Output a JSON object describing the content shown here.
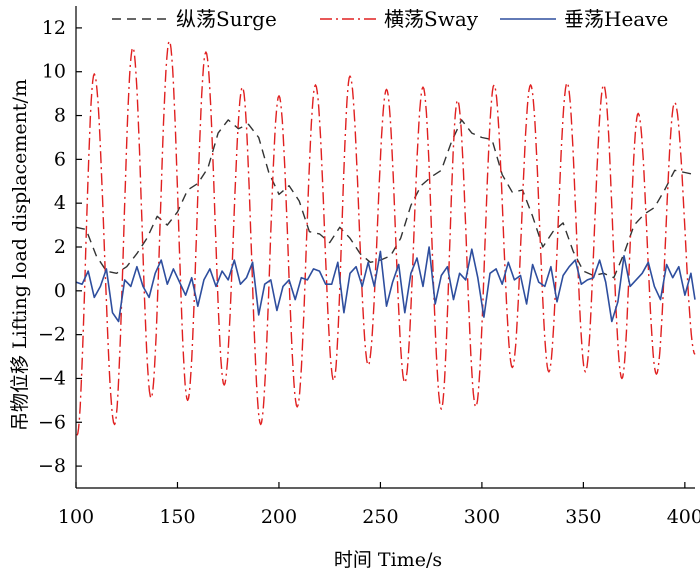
{
  "chart_data": {
    "type": "line",
    "xlabel": "时间 Time/s",
    "ylabel": "吊物位移 Lifting load displacement/m",
    "xlim": [
      100,
      405
    ],
    "ylim": [
      -9,
      13
    ],
    "xticks": [
      "100",
      "150",
      "200",
      "250",
      "300",
      "350",
      "400"
    ],
    "yticks": [
      "12",
      "10",
      "8",
      "6",
      "4",
      "2",
      "0",
      "−2",
      "−4",
      "−6",
      "−8"
    ],
    "legend_position": "top",
    "series": [
      {
        "name": "纵荡Surge",
        "color": "#333333",
        "dash": "dash",
        "x": [
          100,
          105,
          110,
          115,
          120,
          125,
          130,
          135,
          140,
          145,
          150,
          155,
          160,
          165,
          170,
          175,
          180,
          185,
          190,
          195,
          200,
          205,
          210,
          215,
          220,
          225,
          230,
          235,
          240,
          245,
          250,
          255,
          260,
          265,
          270,
          275,
          280,
          285,
          290,
          295,
          300,
          305,
          310,
          315,
          320,
          325,
          330,
          335,
          340,
          345,
          350,
          355,
          360,
          365,
          370,
          375,
          380,
          385,
          390,
          395,
          400,
          405
        ],
        "values": [
          2.9,
          2.8,
          1.6,
          0.9,
          0.8,
          1.1,
          1.7,
          2.4,
          3.4,
          3.0,
          3.6,
          4.6,
          4.9,
          5.6,
          7.2,
          7.8,
          7.4,
          7.6,
          7.0,
          5.4,
          4.4,
          4.8,
          4.1,
          2.7,
          2.6,
          2.2,
          2.9,
          2.4,
          1.7,
          1.3,
          1.4,
          1.6,
          2.4,
          3.9,
          4.8,
          5.2,
          5.5,
          6.8,
          7.8,
          7.2,
          7.0,
          6.9,
          5.3,
          4.5,
          4.6,
          3.4,
          2.0,
          2.7,
          3.1,
          1.8,
          0.9,
          0.7,
          0.8,
          0.6,
          1.7,
          3.0,
          3.5,
          3.8,
          4.6,
          5.5,
          5.4,
          5.3
        ]
      },
      {
        "name": "横荡Sway",
        "color": "#e02020",
        "dash": "dashdot",
        "peaks": [
          [
            100.5,
            -6.6
          ],
          [
            109,
            9.9
          ],
          [
            119,
            -6.1
          ],
          [
            128,
            11.1
          ],
          [
            137,
            -4.9
          ],
          [
            146,
            11.4
          ],
          [
            155,
            -5.0
          ],
          [
            164,
            10.9
          ],
          [
            173,
            -4.3
          ],
          [
            182,
            9.3
          ],
          [
            191,
            -6.1
          ],
          [
            200,
            8.9
          ],
          [
            209,
            -5.3
          ],
          [
            218,
            9.4
          ],
          [
            227,
            -4.1
          ],
          [
            235,
            9.8
          ],
          [
            244,
            -3.4
          ],
          [
            253,
            9.2
          ],
          [
            262,
            -4.2
          ],
          [
            271,
            9.3
          ],
          [
            280,
            -5.4
          ],
          [
            288,
            8.7
          ],
          [
            297,
            -5.3
          ],
          [
            306,
            9.4
          ],
          [
            315,
            -3.5
          ],
          [
            324,
            9.4
          ],
          [
            333,
            -3.7
          ],
          [
            342,
            9.5
          ],
          [
            351,
            -3.7
          ],
          [
            360,
            9.4
          ],
          [
            369,
            -4.0
          ],
          [
            377,
            8.1
          ],
          [
            386,
            -3.8
          ],
          [
            395,
            8.6
          ],
          [
            405,
            -2.9
          ]
        ]
      },
      {
        "name": "垂荡Heave",
        "color": "#2e4e9e",
        "dash": "solid",
        "x": [
          100,
          103,
          106,
          109,
          112,
          115,
          118,
          121,
          124,
          127,
          130,
          133,
          136,
          139,
          142,
          145,
          148,
          151,
          154,
          157,
          160,
          163,
          166,
          169,
          172,
          175,
          178,
          181,
          184,
          187,
          190,
          193,
          196,
          199,
          202,
          205,
          208,
          211,
          214,
          217,
          220,
          223,
          226,
          229,
          232,
          235,
          238,
          241,
          244,
          247,
          250,
          253,
          256,
          259,
          262,
          265,
          268,
          271,
          274,
          277,
          280,
          283,
          286,
          289,
          292,
          295,
          298,
          301,
          304,
          307,
          310,
          313,
          316,
          319,
          322,
          325,
          328,
          331,
          334,
          337,
          340,
          343,
          346,
          349,
          352,
          355,
          358,
          361,
          364,
          367,
          370,
          373,
          376,
          379,
          382,
          385,
          388,
          391,
          394,
          397,
          400,
          403,
          405
        ],
        "values": [
          0.4,
          0.3,
          0.9,
          -0.3,
          0.2,
          1.0,
          -1.0,
          -1.4,
          0.5,
          0.2,
          1.1,
          0.2,
          -0.3,
          0.8,
          1.4,
          0.3,
          1.0,
          0.4,
          -0.2,
          0.6,
          -0.7,
          0.5,
          1.0,
          0.2,
          0.9,
          0.5,
          1.4,
          0.3,
          0.6,
          1.3,
          -1.1,
          0.3,
          0.5,
          -0.9,
          0.2,
          0.5,
          -0.4,
          0.6,
          0.5,
          1.0,
          0.9,
          0.3,
          0.3,
          1.3,
          -1.0,
          0.8,
          1.1,
          0.2,
          1.3,
          0.2,
          1.8,
          -0.7,
          0.4,
          1.2,
          -1.0,
          0.8,
          1.5,
          0.2,
          2.0,
          -0.6,
          0.7,
          1.1,
          -0.4,
          0.8,
          0.5,
          1.9,
          0.6,
          -1.2,
          0.8,
          1.0,
          0.3,
          1.3,
          0.5,
          0.7,
          -0.6,
          1.2,
          0.4,
          0.2,
          1.1,
          -0.5,
          0.7,
          1.1,
          1.4,
          0.3,
          0.5,
          0.6,
          1.4,
          0.4,
          -1.4,
          -0.5,
          1.6,
          0.2,
          0.5,
          0.8,
          1.3,
          0.2,
          -0.4,
          1.2,
          0.6,
          1.1,
          -0.2,
          0.8,
          -0.4
        ]
      }
    ]
  }
}
